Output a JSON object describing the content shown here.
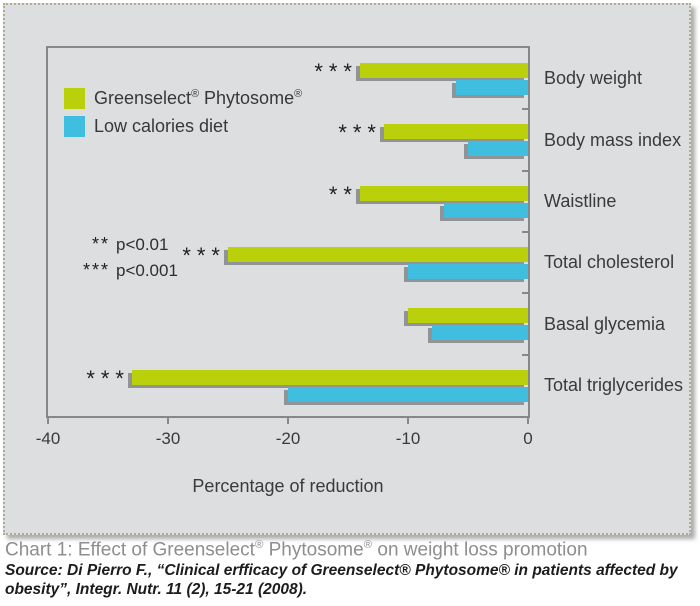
{
  "caption": "Chart 1: Effect of Greenselect® Phytosome® on weight loss promotion",
  "source": "Source: Di Pierro F., “Clinical erfficacy of Greenselect® Phytosome® in patients affected by obesity”, Integr. Nutr. 11 (2), 15-21 (2008).",
  "colors": {
    "panel_background": "#dcdee0",
    "panel_border_dotted": "#aeae94",
    "plot_border": "#85898c",
    "bar_shadow": "#7d8183",
    "greenselect_bar": "#b9d00a",
    "diet_bar": "#3fbedf",
    "text": "#3a3a3a",
    "caption_text": "#8c8e90",
    "source_text": "#1c1c1c"
  },
  "chart_data": {
    "type": "bar",
    "orientation": "horizontal",
    "xlabel": "Percentage of reduction",
    "xlim": [
      -40,
      0
    ],
    "xticks": [
      -40,
      -30,
      -20,
      -10,
      0
    ],
    "grid": false,
    "legend_position": "top-left-inside",
    "categories": [
      "Body weight",
      "Body mass index",
      "Waistline",
      "Total cholesterol",
      "Basal glycemia",
      "Total triglycerides"
    ],
    "series": [
      {
        "name": "Greenselect® Phytosome®",
        "color": "#b9d00a",
        "values": [
          -14,
          -12,
          -14,
          -25,
          -10,
          -33
        ]
      },
      {
        "name": "Low calories diet",
        "color": "#3fbedf",
        "values": [
          -6,
          -5,
          -7,
          -10,
          -8,
          -20
        ]
      }
    ],
    "significance_markers": [
      "***",
      "***",
      "**",
      "***",
      "",
      "***"
    ],
    "notes": [
      {
        "symbol": "**",
        "text": "p<0.01"
      },
      {
        "symbol": "***",
        "text": "p<0.001"
      }
    ]
  }
}
